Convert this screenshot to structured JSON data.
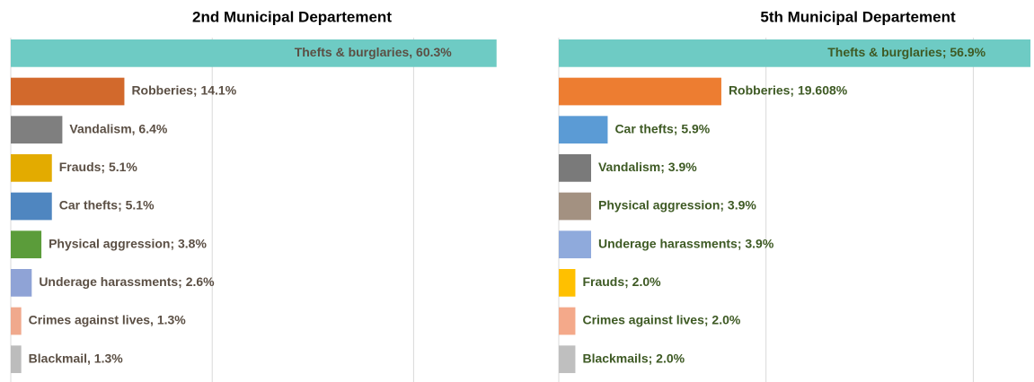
{
  "chart_data": [
    {
      "type": "bar",
      "orientation": "horizontal",
      "title": "2nd Municipal Departement",
      "values": [
        60.3,
        14.1,
        6.4,
        5.1,
        5.1,
        3.8,
        2.6,
        1.3,
        1.3
      ],
      "value_labels": [
        "Thefts & burglaries, 60.3%",
        "Robberies; 14.1%",
        "Vandalism, 6.4%",
        "Frauds; 5.1%",
        "Car thefts; 5.1%",
        "Physical aggression; 3.8%",
        "Underage harassments; 2.6%",
        "Crimes against lives, 1.3%",
        "Blackmail, 1.3%"
      ],
      "colors": [
        "#6ecbc4",
        "#d2692c",
        "#7f7f7f",
        "#e3ab00",
        "#4f86c0",
        "#5b9c3a",
        "#8fa3d6",
        "#f0a98d",
        "#bcbcbc"
      ],
      "label_color": "#5b4f44",
      "xlim": [
        0,
        62
      ],
      "xticks": [
        0,
        25,
        50
      ],
      "grid": true
    },
    {
      "type": "bar",
      "orientation": "horizontal",
      "title": "5th Municipal Departement",
      "values": [
        56.9,
        19.608,
        5.9,
        3.9,
        3.9,
        3.9,
        2.0,
        2.0,
        2.0
      ],
      "value_labels": [
        "Thefts & burglaries; 56.9%",
        "Robberies; 19.608%",
        "Car thefts; 5.9%",
        "Vandalism; 3.9%",
        "Physical aggression; 3.9%",
        "Underage harassments; 3.9%",
        "Frauds; 2.0%",
        "Crimes against lives; 2.0%",
        "Blackmails; 2.0%"
      ],
      "colors": [
        "#6ecbc4",
        "#ed7d31",
        "#5b9bd5",
        "#7a7a7a",
        "#a39181",
        "#8faadc",
        "#ffc000",
        "#f4a98a",
        "#bfbfbf"
      ],
      "label_color": "#3e5a24",
      "xlim": [
        0,
        57
      ],
      "xticks": [
        0,
        25,
        50
      ],
      "grid": true
    }
  ]
}
